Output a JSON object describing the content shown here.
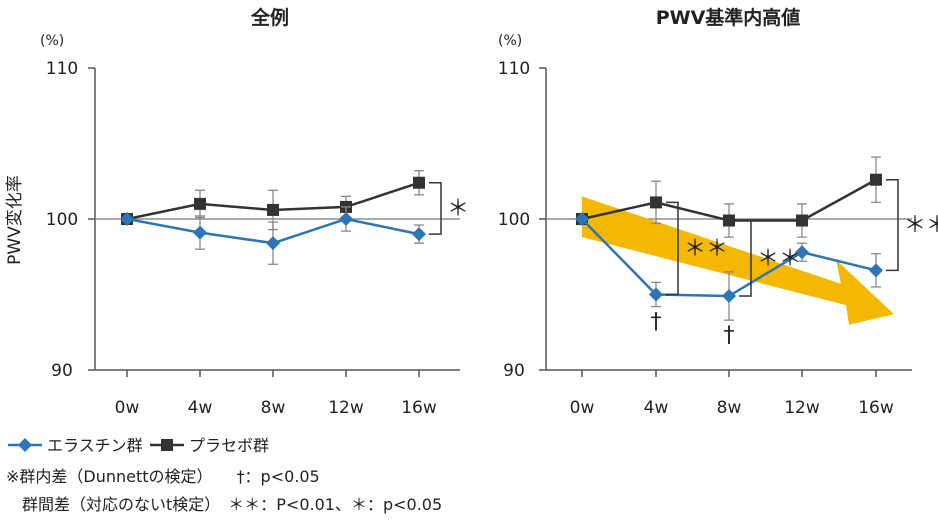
{
  "legend": {
    "items": [
      {
        "label": "エラスチン群",
        "color": "#2e75b6",
        "marker": "diamond"
      },
      {
        "label": "プラセボ群",
        "color": "#333333",
        "marker": "square"
      }
    ]
  },
  "notes": {
    "within": "※群内差（Dunnettの検定）　　†：p<0.05",
    "between": "群間差（対応のないt検定）　＊＊：P<0.01、＊：p<0.05"
  },
  "chart_data": [
    {
      "type": "line",
      "title": "全例",
      "ylabel": "PWV変化率",
      "unit": "(%)",
      "categories": [
        "0w",
        "4w",
        "8w",
        "12w",
        "16w"
      ],
      "yticks": [
        90,
        100,
        110
      ],
      "ylim": [
        90,
        110
      ],
      "reference_line": 100,
      "series": [
        {
          "name": "プラセボ群",
          "values": [
            100,
            101.0,
            100.6,
            100.8,
            102.4
          ],
          "errors": [
            0,
            0.9,
            1.3,
            0.7,
            0.8
          ],
          "color": "#333333",
          "marker": "square"
        },
        {
          "name": "エラスチン群",
          "values": [
            100,
            99.1,
            98.4,
            100.0,
            99.0
          ],
          "errors": [
            0,
            1.1,
            1.4,
            0.8,
            0.6
          ],
          "color": "#2e75b6",
          "marker": "diamond"
        }
      ],
      "significance": [
        {
          "label": "＊",
          "between_x": "16w"
        }
      ],
      "dagger": []
    },
    {
      "type": "line",
      "title": "PWV基準内高値",
      "ylabel": "",
      "unit": "(%)",
      "categories": [
        "0w",
        "4w",
        "8w",
        "12w",
        "16w"
      ],
      "yticks": [
        90,
        100,
        110
      ],
      "ylim": [
        90,
        110
      ],
      "reference_line": 100,
      "series": [
        {
          "name": "プラセボ群",
          "values": [
            100,
            101.1,
            99.9,
            99.9,
            102.6
          ],
          "errors": [
            0,
            1.4,
            1.1,
            1.1,
            1.5
          ],
          "color": "#333333",
          "marker": "square"
        },
        {
          "name": "エラスチン群",
          "values": [
            100,
            95.0,
            94.9,
            97.8,
            96.6
          ],
          "errors": [
            0,
            0.8,
            1.6,
            0.6,
            1.1
          ],
          "color": "#2e75b6",
          "marker": "diamond"
        }
      ],
      "significance": [
        {
          "label": "＊＊",
          "between_x": "4w"
        },
        {
          "label": "＊＊",
          "between_x": "8w"
        },
        {
          "label": "＊＊",
          "between_x": "16w"
        }
      ],
      "dagger": [
        {
          "label": "†",
          "x": "4w"
        },
        {
          "label": "†",
          "x": "8w"
        }
      ],
      "trend_arrow": {
        "color": "#f5b800",
        "from_x": "0w",
        "to_x": "16w"
      }
    }
  ]
}
